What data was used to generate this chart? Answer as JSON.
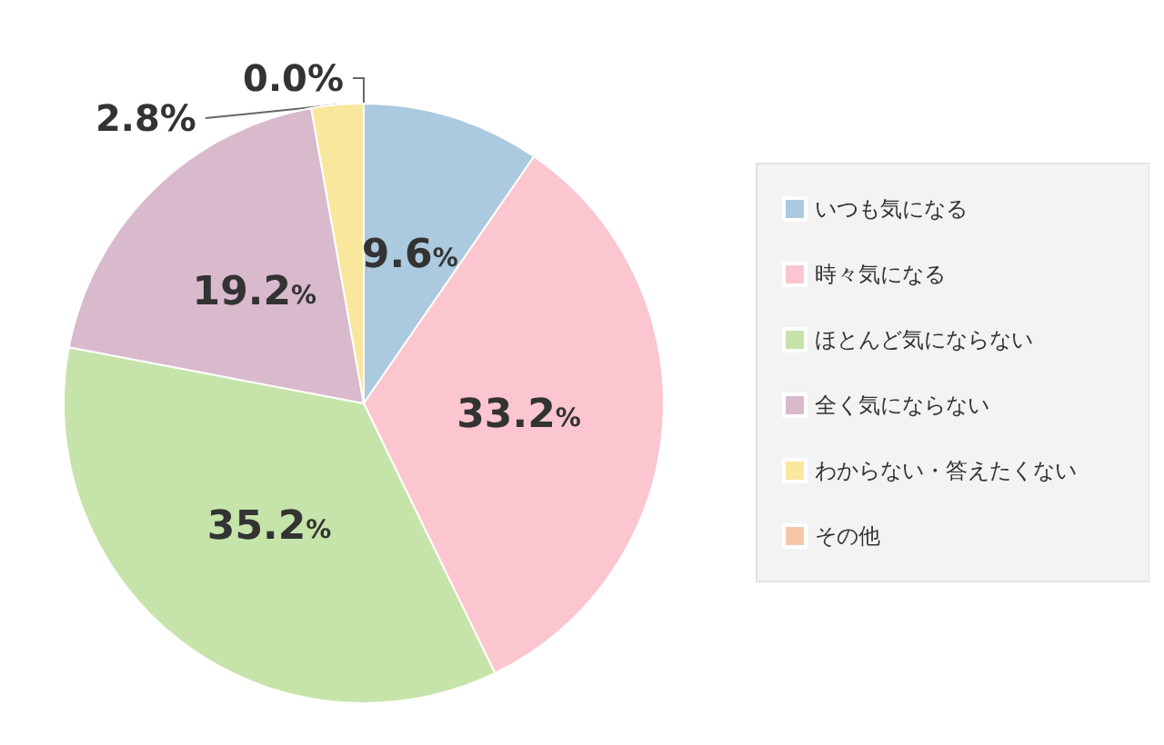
{
  "chart_data": {
    "type": "pie",
    "categories": [
      "いつも気になる",
      "時々気になる",
      "ほとんど気にならない",
      "全く気にならない",
      "わからない・答えたくない",
      "その他"
    ],
    "values": [
      9.6,
      33.2,
      35.2,
      19.2,
      2.8,
      0.0
    ],
    "colors": [
      "#abc9df",
      "#fbc6cf",
      "#c6e4aa",
      "#d9b9cc",
      "#f8e79c",
      "#f6c7a6"
    ],
    "value_labels": [
      "9.6%",
      "33.2%",
      "35.2%",
      "19.2%",
      "2.8%",
      "0.0%"
    ],
    "legend": "right"
  }
}
